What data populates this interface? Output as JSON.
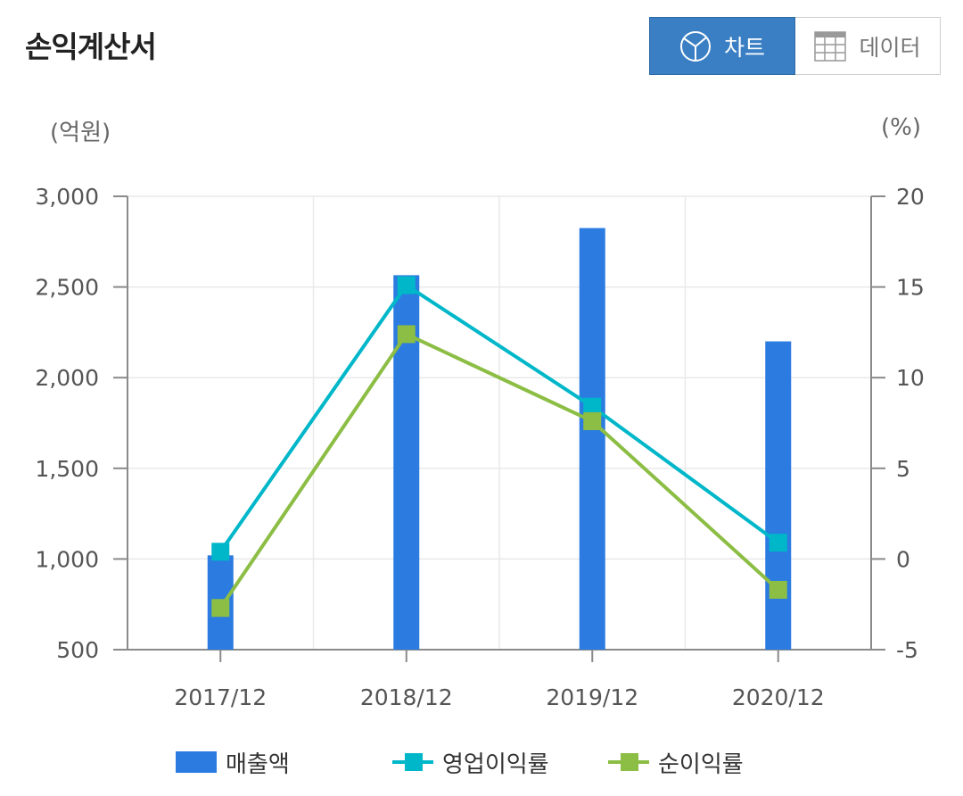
{
  "header": {
    "title": "손익계산서"
  },
  "view_toggle": {
    "chart_label": "차트",
    "data_label": "데이터",
    "chart_icon": "pie-chart-icon",
    "data_icon": "table-grid-icon",
    "active": "chart",
    "active_color": "#3a7fc4"
  },
  "axes": {
    "left_unit": "(억원)",
    "right_unit": "(%)"
  },
  "chart_data": {
    "type": "bar",
    "categories": [
      "2017/12",
      "2018/12",
      "2019/12",
      "2020/12"
    ],
    "y_left": {
      "ticks": [
        "3,000",
        "2,500",
        "2,000",
        "1,500",
        "1,000",
        "500"
      ],
      "range": [
        500,
        3000
      ]
    },
    "y_right": {
      "ticks": [
        "20",
        "15",
        "10",
        "5",
        "0",
        "-5"
      ],
      "range": [
        -5,
        20
      ]
    },
    "grid": true,
    "legend_position": "bottom",
    "series": [
      {
        "name": "매출액",
        "type": "bar",
        "axis": "left",
        "color": "#2b7be0",
        "values": [
          1020,
          2565,
          2825,
          2200
        ]
      },
      {
        "name": "영업이익률",
        "type": "line",
        "axis": "right",
        "color": "#00b7c9",
        "values": [
          0.4,
          15.1,
          8.4,
          0.9
        ]
      },
      {
        "name": "순이익률",
        "type": "line",
        "axis": "right",
        "color": "#8cbd44",
        "values": [
          -2.7,
          12.4,
          7.6,
          -1.7
        ]
      }
    ]
  }
}
